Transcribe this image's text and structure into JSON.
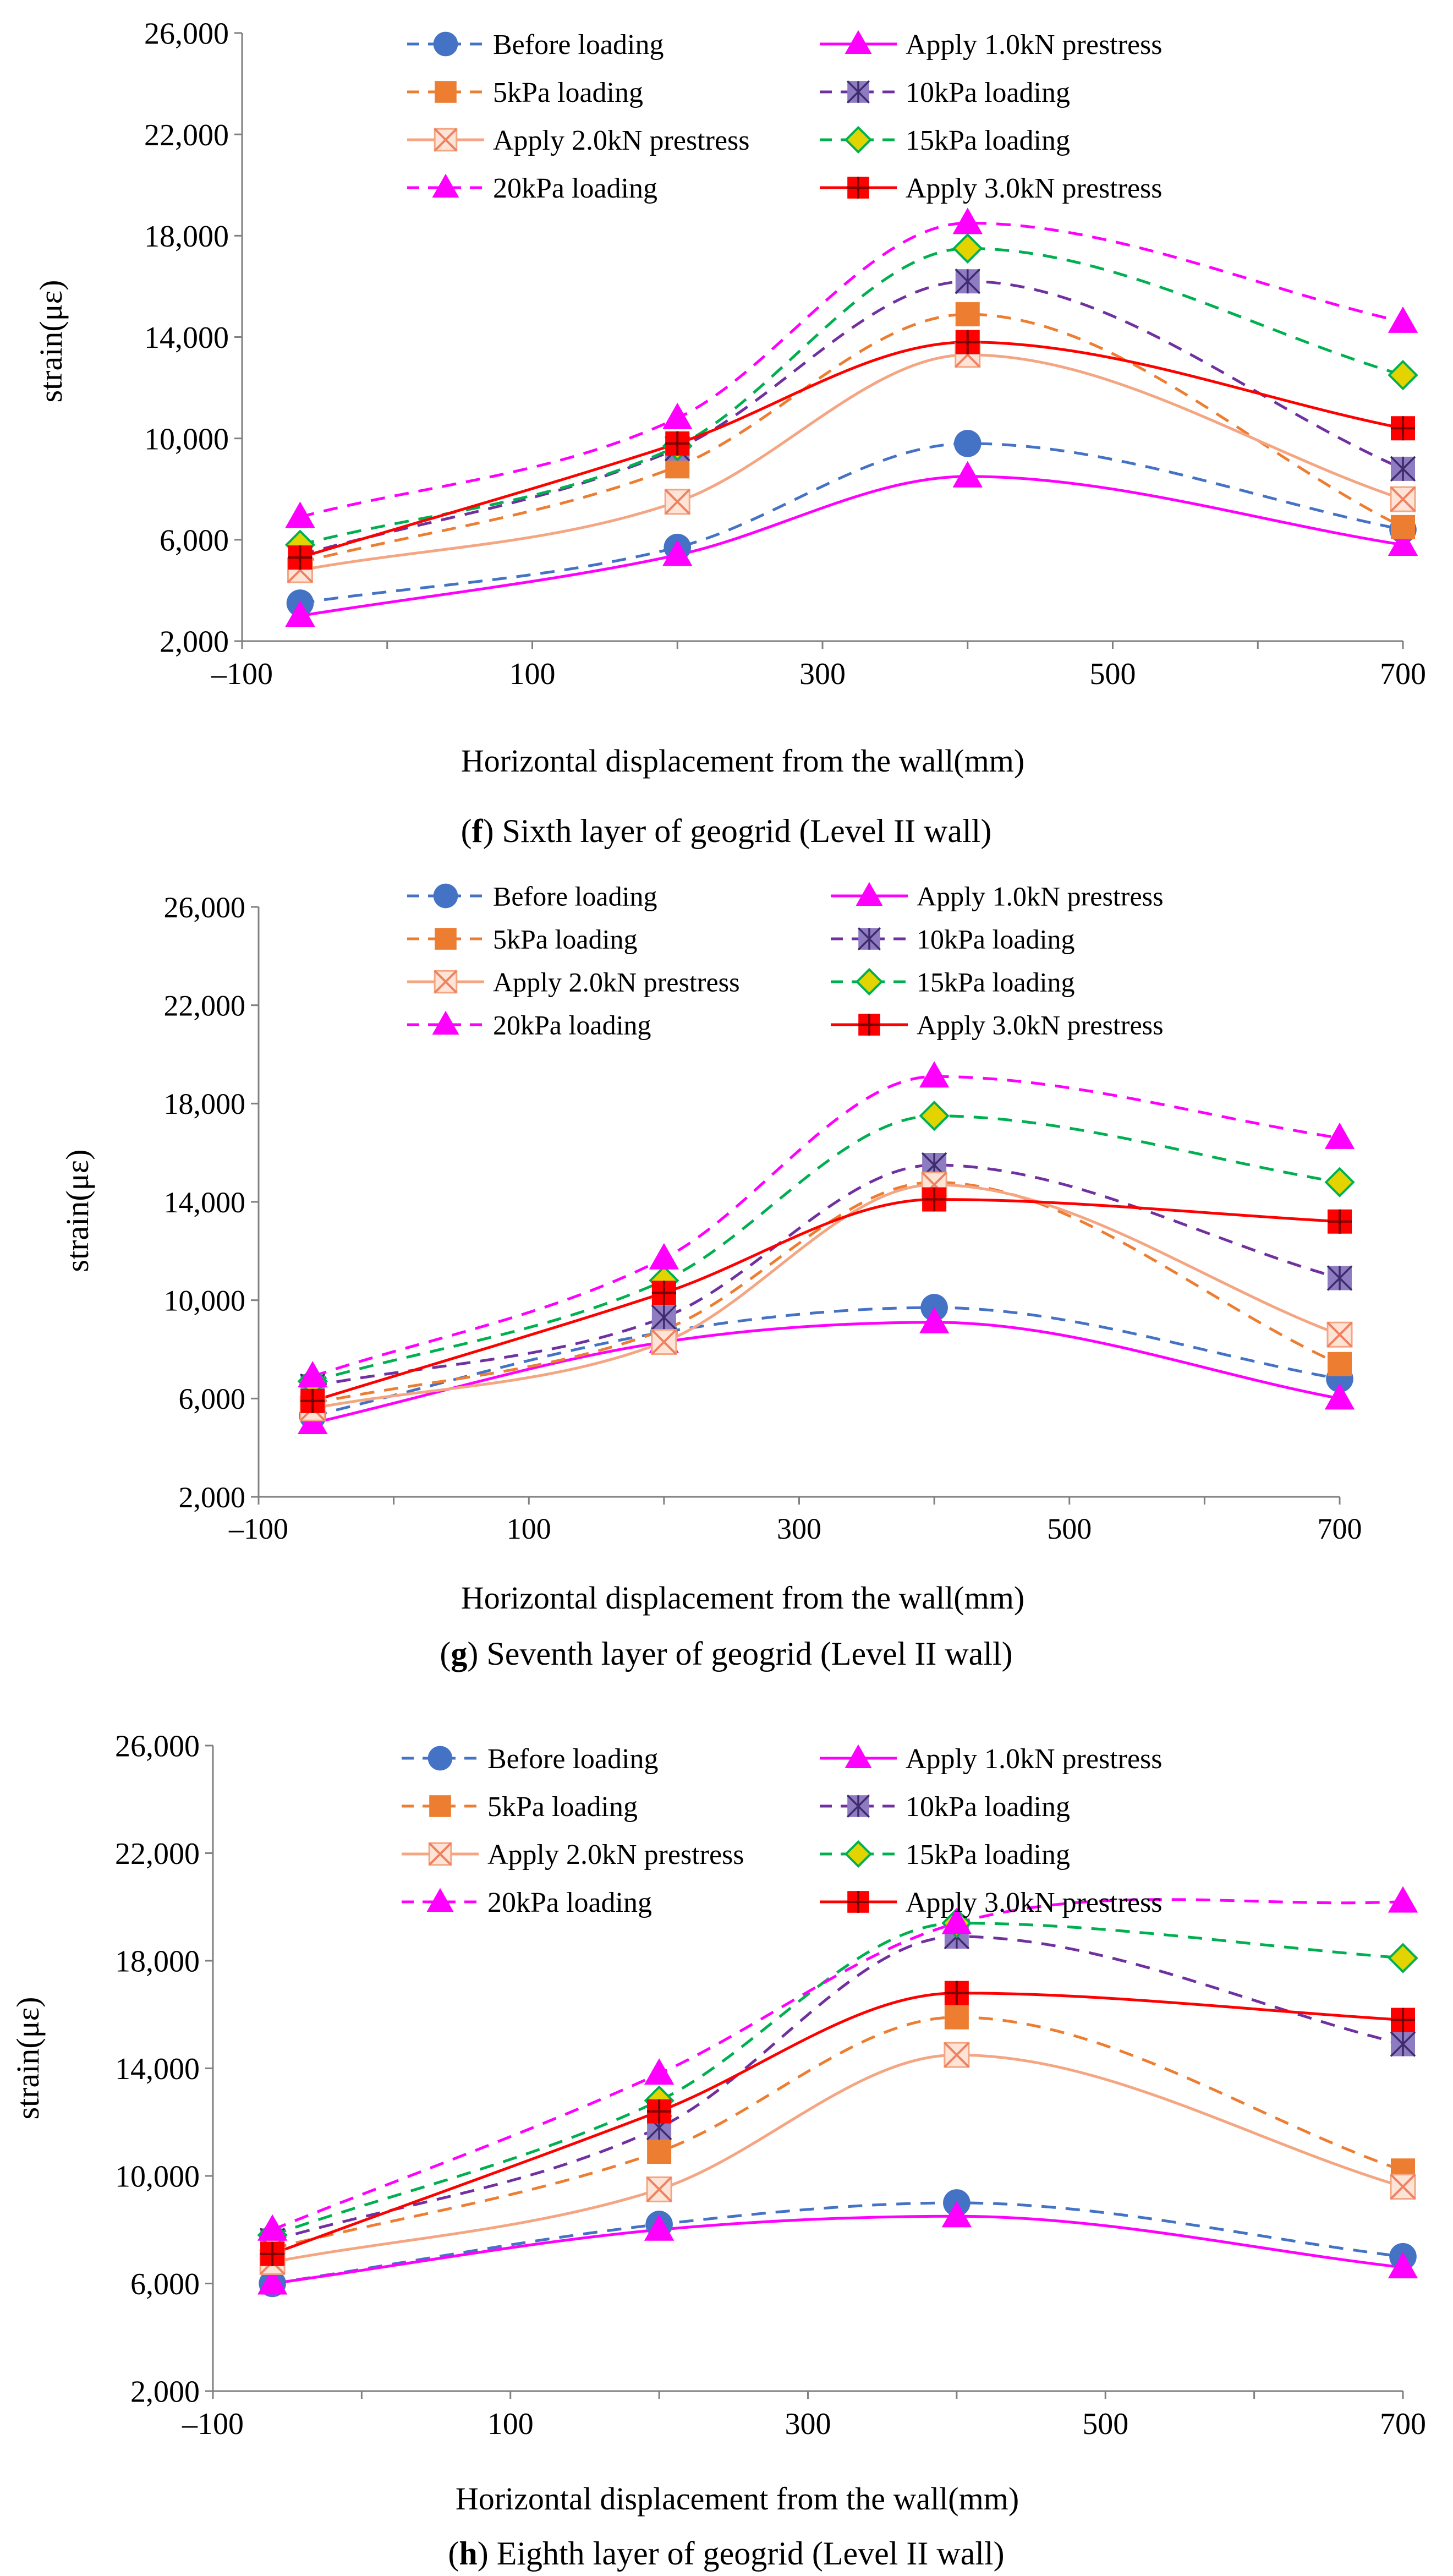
{
  "legend_colors": {
    "before": "#4472C4",
    "p1": "#FF00FF",
    "k5": "#ED7D31",
    "k10": "#7030A0",
    "p2": "#F4A582",
    "k15": "#00B050",
    "k20": "#FF00FF",
    "p3": "#FF0000"
  },
  "chart_data": [
    {
      "type": "line",
      "caption_letter": "f",
      "caption_rest": " Sixth layer of geogrid (Level II wall)",
      "xlabel": "Horizontal displacement  from the wall(mm)",
      "ylabel": "strain(με)",
      "xlim": [
        -100,
        700
      ],
      "ylim": [
        2000,
        26000
      ],
      "x_ticks": [
        "–100",
        "100",
        "300",
        "500",
        "700"
      ],
      "y_ticks": [
        "2,000",
        "6,000",
        "10,000",
        "14,000",
        "18,000",
        "22,000",
        "26,000"
      ],
      "x": [
        -60,
        200,
        400,
        700
      ],
      "series": [
        {
          "key": "before",
          "name": "Before loading",
          "values": [
            3500,
            5700,
            9800,
            6400
          ]
        },
        {
          "key": "p1",
          "name": "Apply 1.0kN prestress",
          "values": [
            3000,
            5400,
            8500,
            5800
          ]
        },
        {
          "key": "k5",
          "name": "5kPa loading",
          "values": [
            5100,
            8900,
            14900,
            6500
          ]
        },
        {
          "key": "k10",
          "name": "10kPa loading",
          "values": [
            5400,
            9600,
            16200,
            8800
          ]
        },
        {
          "key": "p2",
          "name": "Apply 2.0kN prestress",
          "values": [
            4800,
            7500,
            13300,
            7600
          ]
        },
        {
          "key": "k15",
          "name": "15kPa loading",
          "values": [
            5800,
            9700,
            17500,
            12500
          ]
        },
        {
          "key": "k20",
          "name": "20kPa loading",
          "values": [
            6900,
            10800,
            18500,
            14600
          ]
        },
        {
          "key": "p3",
          "name": "Apply 3.0kN prestress",
          "values": [
            5300,
            9800,
            13800,
            10400
          ]
        }
      ]
    },
    {
      "type": "line",
      "caption_letter": "g",
      "caption_rest": " Seventh layer of geogrid (Level II wall)",
      "xlabel": "Horizontal displacement  from the wall(mm)",
      "ylabel": "strain(με)",
      "xlim": [
        -100,
        700
      ],
      "ylim": [
        2000,
        26000
      ],
      "x_ticks": [
        "–100",
        "100",
        "300",
        "500",
        "700"
      ],
      "y_ticks": [
        "2,000",
        "6,000",
        "10,000",
        "14,000",
        "18,000",
        "22,000",
        "26,000"
      ],
      "x": [
        -60,
        200,
        400,
        700
      ],
      "series": [
        {
          "key": "before",
          "name": "Before loading",
          "values": [
            5300,
            8700,
            9700,
            6800
          ]
        },
        {
          "key": "p1",
          "name": "Apply 1.0kN prestress",
          "values": [
            5000,
            8300,
            9100,
            6000
          ]
        },
        {
          "key": "k5",
          "name": "5kPa loading",
          "values": [
            5800,
            8800,
            14800,
            7400
          ]
        },
        {
          "key": "k10",
          "name": "10kPa loading",
          "values": [
            6500,
            9300,
            15500,
            10900
          ]
        },
        {
          "key": "p2",
          "name": "Apply 2.0kN prestress",
          "values": [
            5600,
            8300,
            14700,
            8600
          ]
        },
        {
          "key": "k15",
          "name": "15kPa loading",
          "values": [
            6700,
            10800,
            17500,
            14800
          ]
        },
        {
          "key": "k20",
          "name": "20kPa loading",
          "values": [
            6900,
            11700,
            19100,
            16600
          ]
        },
        {
          "key": "p3",
          "name": "Apply 3.0kN prestress",
          "values": [
            5900,
            10300,
            14100,
            13200
          ]
        }
      ]
    },
    {
      "type": "line",
      "caption_letter": "h",
      "caption_rest": " Eighth layer of geogrid (Level II wall)",
      "xlabel": "Horizontal displacement  from the wall(mm)",
      "ylabel": "strain(με)",
      "xlim": [
        -100,
        700
      ],
      "ylim": [
        2000,
        26000
      ],
      "x_ticks": [
        "–100",
        "100",
        "300",
        "500",
        "700"
      ],
      "y_ticks": [
        "2,000",
        "6,000",
        "10,000",
        "14,000",
        "18,000",
        "22,000",
        "26,000"
      ],
      "x": [
        -60,
        200,
        400,
        700
      ],
      "series": [
        {
          "key": "before",
          "name": "Before loading",
          "values": [
            6000,
            8200,
            9000,
            7000
          ]
        },
        {
          "key": "p1",
          "name": "Apply 1.0kN prestress",
          "values": [
            6000,
            8000,
            8500,
            6600
          ]
        },
        {
          "key": "k5",
          "name": "5kPa loading",
          "values": [
            7300,
            10900,
            15900,
            10200
          ]
        },
        {
          "key": "k10",
          "name": "10kPa loading",
          "values": [
            7600,
            11800,
            18900,
            14900
          ]
        },
        {
          "key": "p2",
          "name": "Apply 2.0kN prestress",
          "values": [
            6800,
            9500,
            14500,
            9600
          ]
        },
        {
          "key": "k15",
          "name": "15kPa loading",
          "values": [
            7800,
            12800,
            19400,
            18100
          ]
        },
        {
          "key": "k20",
          "name": "20kPa loading",
          "values": [
            8000,
            13800,
            19400,
            20200
          ]
        },
        {
          "key": "p3",
          "name": "Apply 3.0kN prestress",
          "values": [
            7100,
            12400,
            16800,
            15800
          ]
        }
      ]
    }
  ]
}
